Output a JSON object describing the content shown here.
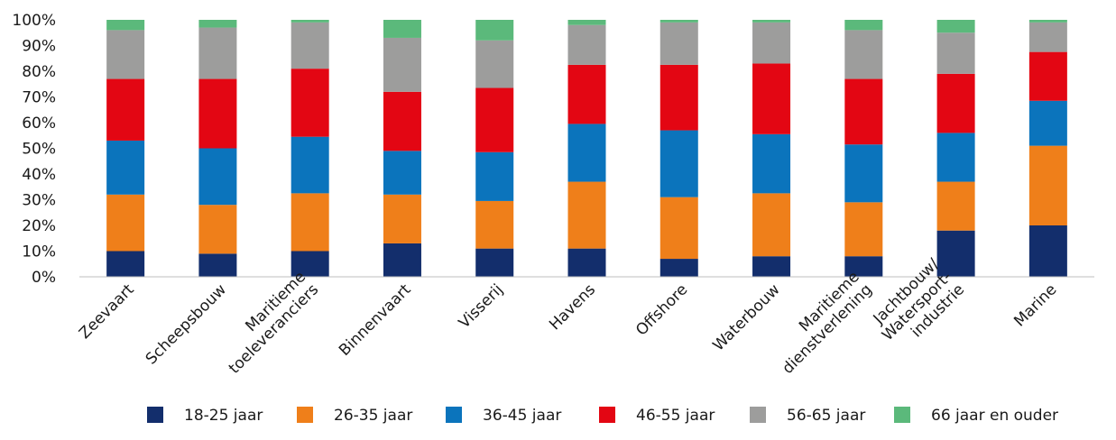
{
  "chart_data": {
    "type": "bar",
    "stacked": true,
    "percent": true,
    "categories": [
      "Zeevaart",
      "Scheepsbouw",
      "Maritieme\ntoeleveranciers",
      "Binnenvaart",
      "Visserij",
      "Havens",
      "Offshore",
      "Waterbouw",
      "Maritieme\ndienstverlening",
      "Jachtbouw/\nWatersport-\nindustrie",
      "Marine"
    ],
    "series": [
      {
        "name": "18-25 jaar",
        "color": "#132e6c",
        "values": [
          10,
          9,
          10,
          13,
          11,
          11,
          7,
          8,
          8,
          18,
          20
        ]
      },
      {
        "name": "26-35 jaar",
        "color": "#ef7f1a",
        "values": [
          22,
          19,
          22.5,
          19,
          18.5,
          26,
          24,
          24.5,
          21,
          19,
          31
        ]
      },
      {
        "name": "36-45 jaar",
        "color": "#0b74bc",
        "values": [
          21,
          22,
          22,
          17,
          19,
          22.5,
          26,
          23,
          22.5,
          19,
          17.5
        ]
      },
      {
        "name": "46-55 jaar",
        "color": "#e30613",
        "values": [
          24,
          27,
          26.5,
          23,
          25,
          23,
          25.5,
          27.5,
          25.5,
          23,
          19
        ]
      },
      {
        "name": "56-65 jaar",
        "color": "#9d9d9c",
        "values": [
          19,
          20,
          18,
          21,
          18.5,
          15.5,
          16.5,
          16,
          19,
          16,
          11.5
        ]
      },
      {
        "name": "66 jaar en ouder",
        "color": "#5bb97b",
        "values": [
          4,
          3,
          1,
          7,
          8,
          2,
          1,
          1,
          4,
          5,
          1
        ]
      }
    ],
    "y_ticks": [
      "0%",
      "10%",
      "20%",
      "30%",
      "40%",
      "50%",
      "60%",
      "70%",
      "80%",
      "90%",
      "100%"
    ],
    "ylim": [
      0,
      100
    ],
    "grid": false,
    "legend_position": "bottom"
  }
}
